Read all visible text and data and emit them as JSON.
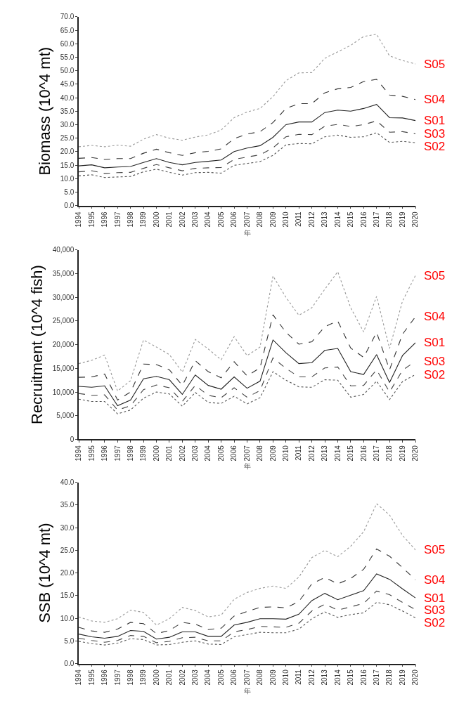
{
  "chart_data": [
    {
      "type": "line",
      "ylabel": "Biomass (10^4 mt)",
      "xlabel": "年",
      "categories": [
        "1994",
        "1995",
        "1996",
        "1997",
        "1998",
        "1999",
        "2000",
        "2001",
        "2002",
        "2003",
        "2004",
        "2005",
        "2006",
        "2007",
        "2008",
        "2009",
        "2010",
        "2011",
        "2012",
        "2013",
        "2014",
        "2015",
        "2016",
        "2017",
        "2018",
        "2019",
        "2020"
      ],
      "ylim": [
        0,
        70
      ],
      "yticks": [
        {
          "value": 0,
          "label": "0.0"
        },
        {
          "value": 5,
          "label": "5.0"
        },
        {
          "value": 10,
          "label": "10.0"
        },
        {
          "value": 15,
          "label": "15.0"
        },
        {
          "value": 20,
          "label": "20.0"
        },
        {
          "value": 25,
          "label": "25.0"
        },
        {
          "value": 30,
          "label": "30.0"
        },
        {
          "value": 35,
          "label": "35.0"
        },
        {
          "value": 40,
          "label": "40.0"
        },
        {
          "value": 45,
          "label": "45.0"
        },
        {
          "value": 50,
          "label": "50.0"
        },
        {
          "value": 55,
          "label": "55.0"
        },
        {
          "value": 60,
          "label": "60.0"
        },
        {
          "value": 65,
          "label": "65.0"
        },
        {
          "value": 70,
          "label": "70.0"
        }
      ],
      "series": [
        {
          "name": "S05",
          "color": "#999999",
          "line_style": "dotted",
          "values": [
            21.8,
            22.3,
            21.8,
            22.4,
            22.0,
            24.6,
            26.3,
            25.0,
            24.2,
            25.4,
            26.2,
            28.0,
            32.6,
            34.7,
            36.0,
            40.4,
            46.3,
            49.2,
            49.3,
            54.6,
            57.0,
            59.4,
            62.7,
            63.5,
            55.5,
            53.8,
            52.5
          ]
        },
        {
          "name": "S04",
          "color": "#333333",
          "line_style": "dashed",
          "values": [
            17.5,
            17.8,
            17.1,
            17.4,
            17.4,
            19.4,
            20.9,
            19.6,
            18.6,
            19.6,
            20.1,
            21.0,
            24.8,
            26.5,
            27.4,
            30.8,
            36.0,
            37.8,
            37.8,
            41.8,
            43.3,
            43.8,
            46.0,
            46.8,
            41.0,
            40.5,
            39.3
          ]
        },
        {
          "name": "S01",
          "color": "#222222",
          "line_style": "solid",
          "values": [
            14.7,
            15.1,
            14.0,
            14.3,
            14.5,
            16.0,
            17.4,
            16.0,
            15.1,
            16.0,
            16.4,
            16.9,
            20.0,
            21.3,
            22.2,
            25.3,
            30.0,
            31.0,
            31.0,
            34.5,
            35.4,
            35.0,
            36.0,
            37.5,
            32.6,
            32.5,
            31.5
          ]
        },
        {
          "name": "S03",
          "color": "#444444",
          "line_style": "dashed",
          "values": [
            12.5,
            12.9,
            11.9,
            12.2,
            12.3,
            13.8,
            15.2,
            14.0,
            12.9,
            13.8,
            14.0,
            14.1,
            17.1,
            18.0,
            18.8,
            21.4,
            25.5,
            26.4,
            26.3,
            29.4,
            30.1,
            29.3,
            30.0,
            31.4,
            27.2,
            27.4,
            26.6
          ]
        },
        {
          "name": "S02",
          "color": "#555555",
          "line_style": "dotted",
          "values": [
            11.0,
            11.4,
            10.4,
            10.6,
            10.8,
            12.5,
            13.5,
            12.3,
            11.3,
            12.2,
            12.3,
            12.0,
            14.9,
            15.6,
            16.3,
            18.6,
            22.5,
            23.0,
            22.9,
            25.5,
            26.1,
            25.3,
            25.5,
            27.0,
            23.4,
            23.8,
            23.3
          ]
        }
      ]
    },
    {
      "type": "line",
      "ylabel": "Recruitment (10^4 fish)",
      "xlabel": "年",
      "categories": [
        "1994",
        "1995",
        "1996",
        "1997",
        "1998",
        "1999",
        "2000",
        "2001",
        "2002",
        "2003",
        "2004",
        "2005",
        "2006",
        "2007",
        "2008",
        "2009",
        "2010",
        "2011",
        "2012",
        "2013",
        "2014",
        "2015",
        "2016",
        "2017",
        "2018",
        "2019",
        "2020"
      ],
      "ylim": [
        0,
        40000
      ],
      "yticks": [
        0,
        {
          "value": 5000,
          "label": "5,000"
        },
        {
          "value": 10000,
          "label": "10,000"
        },
        {
          "value": 15000,
          "label": "15,000"
        },
        {
          "value": 20000,
          "label": "20,000"
        },
        {
          "value": 25000,
          "label": "25,000"
        },
        {
          "value": 30000,
          "label": "30,000"
        },
        {
          "value": 35000,
          "label": "35,000"
        },
        {
          "value": 40000,
          "label": "40,000"
        }
      ],
      "series": [
        {
          "name": "S05",
          "color": "#999999",
          "line_style": "dotted",
          "values": [
            16000,
            16700,
            17800,
            10200,
            12400,
            21000,
            19500,
            17900,
            14200,
            21100,
            19100,
            16800,
            21700,
            17700,
            19500,
            34500,
            30000,
            26200,
            27800,
            31700,
            35400,
            27800,
            22700,
            30200,
            19200,
            29200,
            34600
          ]
        },
        {
          "name": "S04",
          "color": "#333333",
          "line_style": "dashed",
          "values": [
            13100,
            13200,
            13800,
            8300,
            10000,
            15900,
            15800,
            14700,
            11400,
            16600,
            14300,
            13000,
            16400,
            13400,
            15100,
            26300,
            22600,
            20100,
            20600,
            23800,
            25000,
            19300,
            17300,
            22600,
            14700,
            22200,
            25900
          ]
        },
        {
          "name": "S01",
          "color": "#222222",
          "line_style": "solid",
          "values": [
            11200,
            11000,
            11300,
            7100,
            8300,
            12800,
            13300,
            12600,
            9500,
            13600,
            11400,
            10600,
            13200,
            10800,
            12300,
            21000,
            18300,
            16000,
            16200,
            18800,
            19200,
            14300,
            13700,
            17900,
            12000,
            17700,
            20400
          ]
        },
        {
          "name": "S03",
          "color": "#444444",
          "line_style": "dashed",
          "values": [
            9700,
            9300,
            9400,
            6200,
            7100,
            10500,
            11500,
            10900,
            8000,
            11400,
            9300,
            8800,
            10900,
            8900,
            10300,
            17200,
            15000,
            13200,
            13200,
            15100,
            15300,
            11300,
            11400,
            14700,
            10000,
            14600,
            16500
          ]
        },
        {
          "name": "S02",
          "color": "#555555",
          "line_style": "dotted",
          "values": [
            8500,
            8000,
            8000,
            5400,
            6200,
            8700,
            10000,
            9600,
            7000,
            9900,
            7800,
            7600,
            9100,
            7500,
            8800,
            14300,
            12500,
            11100,
            11000,
            12600,
            12500,
            8900,
            9500,
            12300,
            8400,
            12200,
            13700
          ]
        }
      ]
    },
    {
      "type": "line",
      "ylabel": "SSB (10^4 mt)",
      "xlabel": "年",
      "categories": [
        "1994",
        "1995",
        "1996",
        "1997",
        "1998",
        "1999",
        "2000",
        "2001",
        "2002",
        "2003",
        "2004",
        "2005",
        "2006",
        "2007",
        "2008",
        "2009",
        "2010",
        "2011",
        "2012",
        "2013",
        "2014",
        "2015",
        "2016",
        "2017",
        "2018",
        "2019",
        "2020"
      ],
      "ylim": [
        0,
        40
      ],
      "yticks": [
        {
          "value": 0,
          "label": "0.0"
        },
        {
          "value": 5,
          "label": "5.0"
        },
        {
          "value": 10,
          "label": "10.0"
        },
        {
          "value": 15,
          "label": "15.0"
        },
        {
          "value": 20,
          "label": "20.0"
        },
        {
          "value": 25,
          "label": "25.0"
        },
        {
          "value": 30,
          "label": "30.0"
        },
        {
          "value": 35,
          "label": "35.0"
        },
        {
          "value": 40,
          "label": "40.0"
        }
      ],
      "series": [
        {
          "name": "S05",
          "color": "#999999",
          "line_style": "dotted",
          "values": [
            10.3,
            9.4,
            9.1,
            9.9,
            11.8,
            11.3,
            8.5,
            9.9,
            12.4,
            11.7,
            10.3,
            10.7,
            14.2,
            15.7,
            16.6,
            17.1,
            16.6,
            19.1,
            23.4,
            25.0,
            23.6,
            25.9,
            29.1,
            35.3,
            32.8,
            28.3,
            25.1
          ]
        },
        {
          "name": "S04",
          "color": "#333333",
          "line_style": "dashed",
          "values": [
            8.0,
            7.2,
            6.9,
            7.6,
            9.1,
            8.8,
            6.6,
            7.3,
            9.1,
            8.7,
            7.5,
            7.8,
            10.5,
            11.5,
            12.4,
            12.5,
            12.3,
            13.7,
            17.6,
            19.0,
            17.6,
            18.8,
            20.8,
            25.3,
            23.7,
            21.2,
            18.5
          ]
        },
        {
          "name": "S01",
          "color": "#222222",
          "line_style": "solid",
          "values": [
            6.5,
            5.9,
            5.6,
            6.0,
            7.3,
            7.1,
            5.4,
            5.8,
            7.0,
            7.0,
            6.0,
            6.0,
            8.5,
            9.1,
            9.9,
            9.9,
            9.8,
            10.9,
            13.9,
            15.5,
            14.1,
            15.1,
            16.1,
            19.8,
            18.6,
            16.5,
            14.5
          ]
        },
        {
          "name": "S03",
          "color": "#444444",
          "line_style": "dashed",
          "values": [
            5.6,
            5.1,
            4.7,
            5.1,
            6.2,
            6.0,
            4.6,
            4.9,
            5.7,
            5.8,
            5.0,
            5.0,
            7.0,
            7.5,
            8.2,
            8.1,
            8.0,
            8.9,
            11.6,
            13.1,
            11.8,
            12.5,
            13.3,
            16.0,
            15.2,
            13.5,
            11.9
          ]
        },
        {
          "name": "S02",
          "color": "#555555",
          "line_style": "dotted",
          "values": [
            4.9,
            4.4,
            4.1,
            4.5,
            5.5,
            5.3,
            4.1,
            4.2,
            4.7,
            5.0,
            4.3,
            4.2,
            5.9,
            6.4,
            6.9,
            6.8,
            6.8,
            7.6,
            9.9,
            11.4,
            10.2,
            10.8,
            11.2,
            13.5,
            13.0,
            11.6,
            10.1
          ]
        }
      ]
    }
  ]
}
